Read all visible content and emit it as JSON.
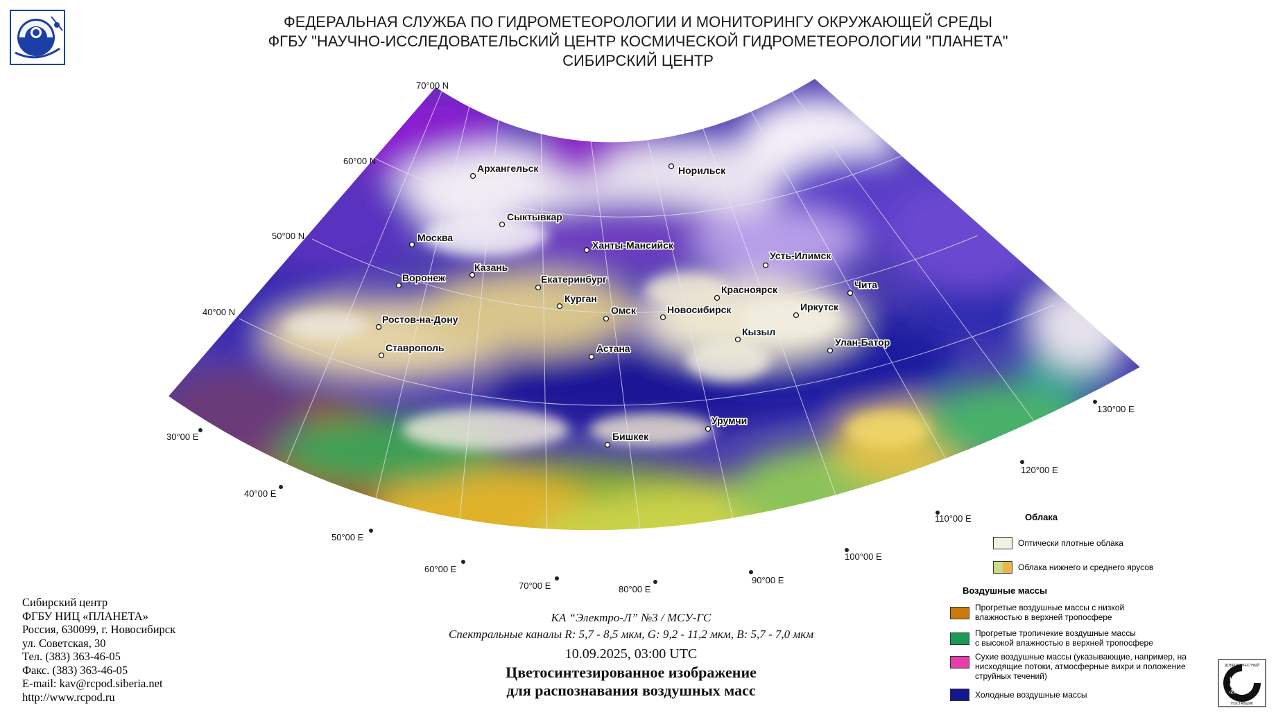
{
  "header": {
    "line1": "ФЕДЕРАЛЬНАЯ СЛУЖБА ПО ГИДРОМЕТЕОРОЛОГИИ И МОНИТОРИНГУ ОКРУЖАЮЩЕЙ СРЕДЫ",
    "line2": "ФГБУ \"НАУЧНО-ИССЛЕДОВАТЕЛЬСКИЙ ЦЕНТР КОСМИЧЕСКОЙ ГИДРОМЕТЕОРОЛОГИИ \"ПЛАНЕТА\"",
    "line3": "СИБИРСКИЙ ЦЕНТР"
  },
  "lat_labels": [
    "70°00 N",
    "60°00 N",
    "50°00 N",
    "40°00 N"
  ],
  "lon_labels": [
    "30°00 E",
    "40°00 E",
    "50°00 E",
    "60°00 E",
    "70°00 E",
    "80°00 E",
    "90°00 E",
    "100°00 E",
    "110°00 E",
    "120°00 E",
    "130°00 E"
  ],
  "cities": [
    {
      "name": "Архангельск"
    },
    {
      "name": "Норильск"
    },
    {
      "name": "Сыктывкар"
    },
    {
      "name": "Москва"
    },
    {
      "name": "Ханты-Мансийск"
    },
    {
      "name": "Усть-Илимск"
    },
    {
      "name": "Казань"
    },
    {
      "name": "Воронеж"
    },
    {
      "name": "Екатеринбург"
    },
    {
      "name": "Красноярск"
    },
    {
      "name": "Чита"
    },
    {
      "name": "Курган"
    },
    {
      "name": "Омск"
    },
    {
      "name": "Новосибирск"
    },
    {
      "name": "Иркутск"
    },
    {
      "name": "Ростов-на-Дону"
    },
    {
      "name": "Кызыл"
    },
    {
      "name": "Улан-Батор"
    },
    {
      "name": "Ставрополь"
    },
    {
      "name": "Астана"
    },
    {
      "name": "Урумчи"
    },
    {
      "name": "Бишкек"
    }
  ],
  "contact": {
    "line1": "Сибирский центр",
    "line2": "ФГБУ НИЦ «ПЛАНЕТА»",
    "line3": "Россия, 630099, г. Новосибирск",
    "line4": "ул. Советская, 30",
    "line5": "Тел. (383) 363-46-05",
    "line6": "Факс. (383) 363-46-05",
    "line7": "E-mail: kav@rcpod.siberia.net",
    "line8": "http://www.rcpod.ru"
  },
  "caption": {
    "satellite": "КА “Электро-Л” №3 / МСУ-ГС",
    "channels": "Спектральные каналы R: 5,7 - 8,5 мкм, G: 9,2 - 11,2 мкм, B: 5,7 - 7,0 мкм",
    "datetime": "10.09.2025, 03:00 UTC",
    "title1": "Цветосинтезированное изображение",
    "title2": "для распознавания воздушных масс"
  },
  "legend": {
    "clouds_title": "Облака",
    "clouds": [
      {
        "label": "Оптически плотные облака",
        "colors": [
          "#f3f1e2"
        ]
      },
      {
        "label": "Облака нижнего и среднего ярусов",
        "colors": [
          "#c9dc8a",
          "#e8b64a"
        ]
      }
    ],
    "air_title": "Воздушные массы",
    "air": [
      {
        "line1": "Прогретые воздушные массы с низкой",
        "line2": "влажностью в верхней тропосфере",
        "line3": "",
        "color": "#cc7a0a"
      },
      {
        "line1": "Прогретые тропичекие воздушные массы",
        "line2": "с высокой влажностью в верхней тропосфере",
        "line3": "",
        "color": "#1a9a55"
      },
      {
        "line1": "Сухие воздушные массы (указывающие, например, на",
        "line2": "нисходящие потоки, атмосферные вихри и положение",
        "line3": "струйных течений)",
        "color": "#e83caa"
      },
      {
        "line1": "Холодные воздушные массы",
        "line2": "",
        "line3": "",
        "color": "#15168f"
      }
    ]
  },
  "cert": {
    "l1": "ДОБРОСОВЕСТНЫЙ",
    "l2": "ИСО",
    "l3": "9001",
    "l4": "-2015",
    "l5": "ПОСТАВЩИК"
  },
  "colors": {
    "cold_mass": "#1c1a9a",
    "dry_mass": "#9a2ac8",
    "dense_cloud": "#f3f1e2",
    "tropical_mass": "#2aa05a",
    "warm_dry": "#c98a1a"
  }
}
